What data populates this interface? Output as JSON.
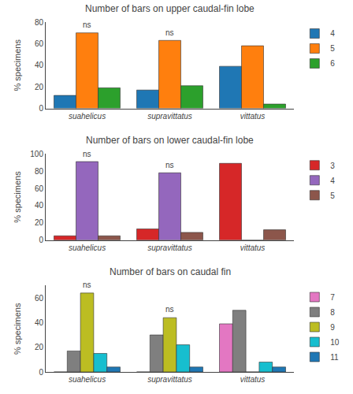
{
  "chart_data": [
    {
      "type": "bar",
      "title": "Number of bars on upper caudal-fin lobe",
      "categories": [
        "suahelicus",
        "supravittatus",
        "vittatus"
      ],
      "series": [
        {
          "name": "4",
          "values": [
            12,
            17,
            39
          ]
        },
        {
          "name": "5",
          "values": [
            70,
            63,
            58
          ]
        },
        {
          "name": "6",
          "values": [
            19,
            21,
            4
          ]
        }
      ],
      "ylabel": "% specimens",
      "ylim": [
        0,
        80
      ],
      "yticks": [
        0,
        20,
        40,
        60,
        80
      ],
      "grid": false,
      "legend": "upper right",
      "annotations": [
        {
          "text": "ns",
          "category": "suahelicus",
          "y": 72
        },
        {
          "text": "ns",
          "category": "supravittatus",
          "y": 65
        }
      ]
    },
    {
      "type": "bar",
      "title": "Number of bars on lower caudal-fin lobe",
      "categories": [
        "suahelicus",
        "supravittatus",
        "vittatus"
      ],
      "series": [
        {
          "name": "3",
          "values": [
            5,
            13,
            89
          ]
        },
        {
          "name": "4",
          "values": [
            91,
            78,
            0
          ]
        },
        {
          "name": "5",
          "values": [
            5,
            9,
            12
          ]
        }
      ],
      "ylabel": "% specimens",
      "ylim": [
        0,
        100
      ],
      "yticks": [
        0,
        20,
        40,
        60,
        80,
        100
      ],
      "grid": false,
      "legend": "upper right",
      "annotations": [
        {
          "text": "ns",
          "category": "suahelicus",
          "y": 93
        },
        {
          "text": "ns",
          "category": "supravittatus",
          "y": 80
        }
      ]
    },
    {
      "type": "bar",
      "title": "Number of bars on caudal fin",
      "categories": [
        "suahelicus",
        "supravittatus",
        "vittatus"
      ],
      "series": [
        {
          "name": "7",
          "values": [
            0,
            0,
            39
          ]
        },
        {
          "name": "8",
          "values": [
            17,
            30,
            50
          ]
        },
        {
          "name": "9",
          "values": [
            64,
            44,
            0
          ]
        },
        {
          "name": "10",
          "values": [
            15,
            22,
            8
          ]
        },
        {
          "name": "11",
          "values": [
            4,
            4,
            4
          ]
        }
      ],
      "ylabel": "% specimens",
      "ylim": [
        0,
        70
      ],
      "yticks": [
        0,
        20,
        40,
        60
      ],
      "grid": false,
      "legend": "upper right",
      "annotations": [
        {
          "text": "ns",
          "category": "suahelicus",
          "y": 66
        },
        {
          "text": "ns",
          "category": "supravittatus",
          "y": 46
        }
      ]
    }
  ]
}
